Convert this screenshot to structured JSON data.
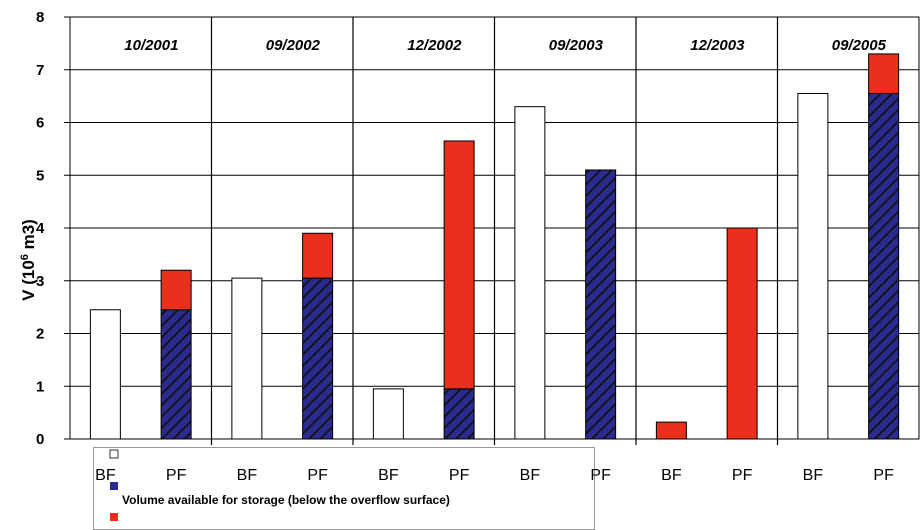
{
  "chart_data": {
    "type": "bar",
    "ylabel": "V (10",
    "ylabel_sup": "6",
    "ylabel_suffix": " m3)",
    "ylim": [
      0,
      8
    ],
    "yticks": [
      "0",
      "1",
      "2",
      "3",
      "4",
      "5",
      "6",
      "7",
      "8"
    ],
    "periods": [
      "10/2001",
      "09/2002",
      "12/2002",
      "09/2003",
      "12/2003",
      "09/2005"
    ],
    "categories": [
      "BF",
      "PF",
      "BF",
      "PF",
      "BF",
      "PF",
      "BF",
      "PF",
      "BF",
      "PF",
      "BF",
      "PF"
    ],
    "series": [
      {
        "key": "empty",
        "label": "",
        "color": "#ffffff",
        "values": [
          2.45,
          0,
          3.05,
          0,
          0.95,
          0,
          6.3,
          0,
          0,
          0,
          6.55,
          0
        ]
      },
      {
        "key": "storage",
        "label": "Volume available for storage (below the overflow surface)",
        "color": "#2a2a8c",
        "pattern": "hatched",
        "values": [
          0,
          2.45,
          0,
          3.05,
          0,
          0.95,
          0,
          5.1,
          0,
          0,
          0,
          6.55
        ]
      },
      {
        "key": "above",
        "label": "",
        "color": "#e8301c",
        "values": [
          0,
          0.75,
          0,
          0.85,
          0,
          4.7,
          0,
          0,
          0.32,
          4.0,
          0,
          0.75
        ]
      }
    ],
    "grid": "horizontal",
    "legend_position": "bottom-left"
  }
}
